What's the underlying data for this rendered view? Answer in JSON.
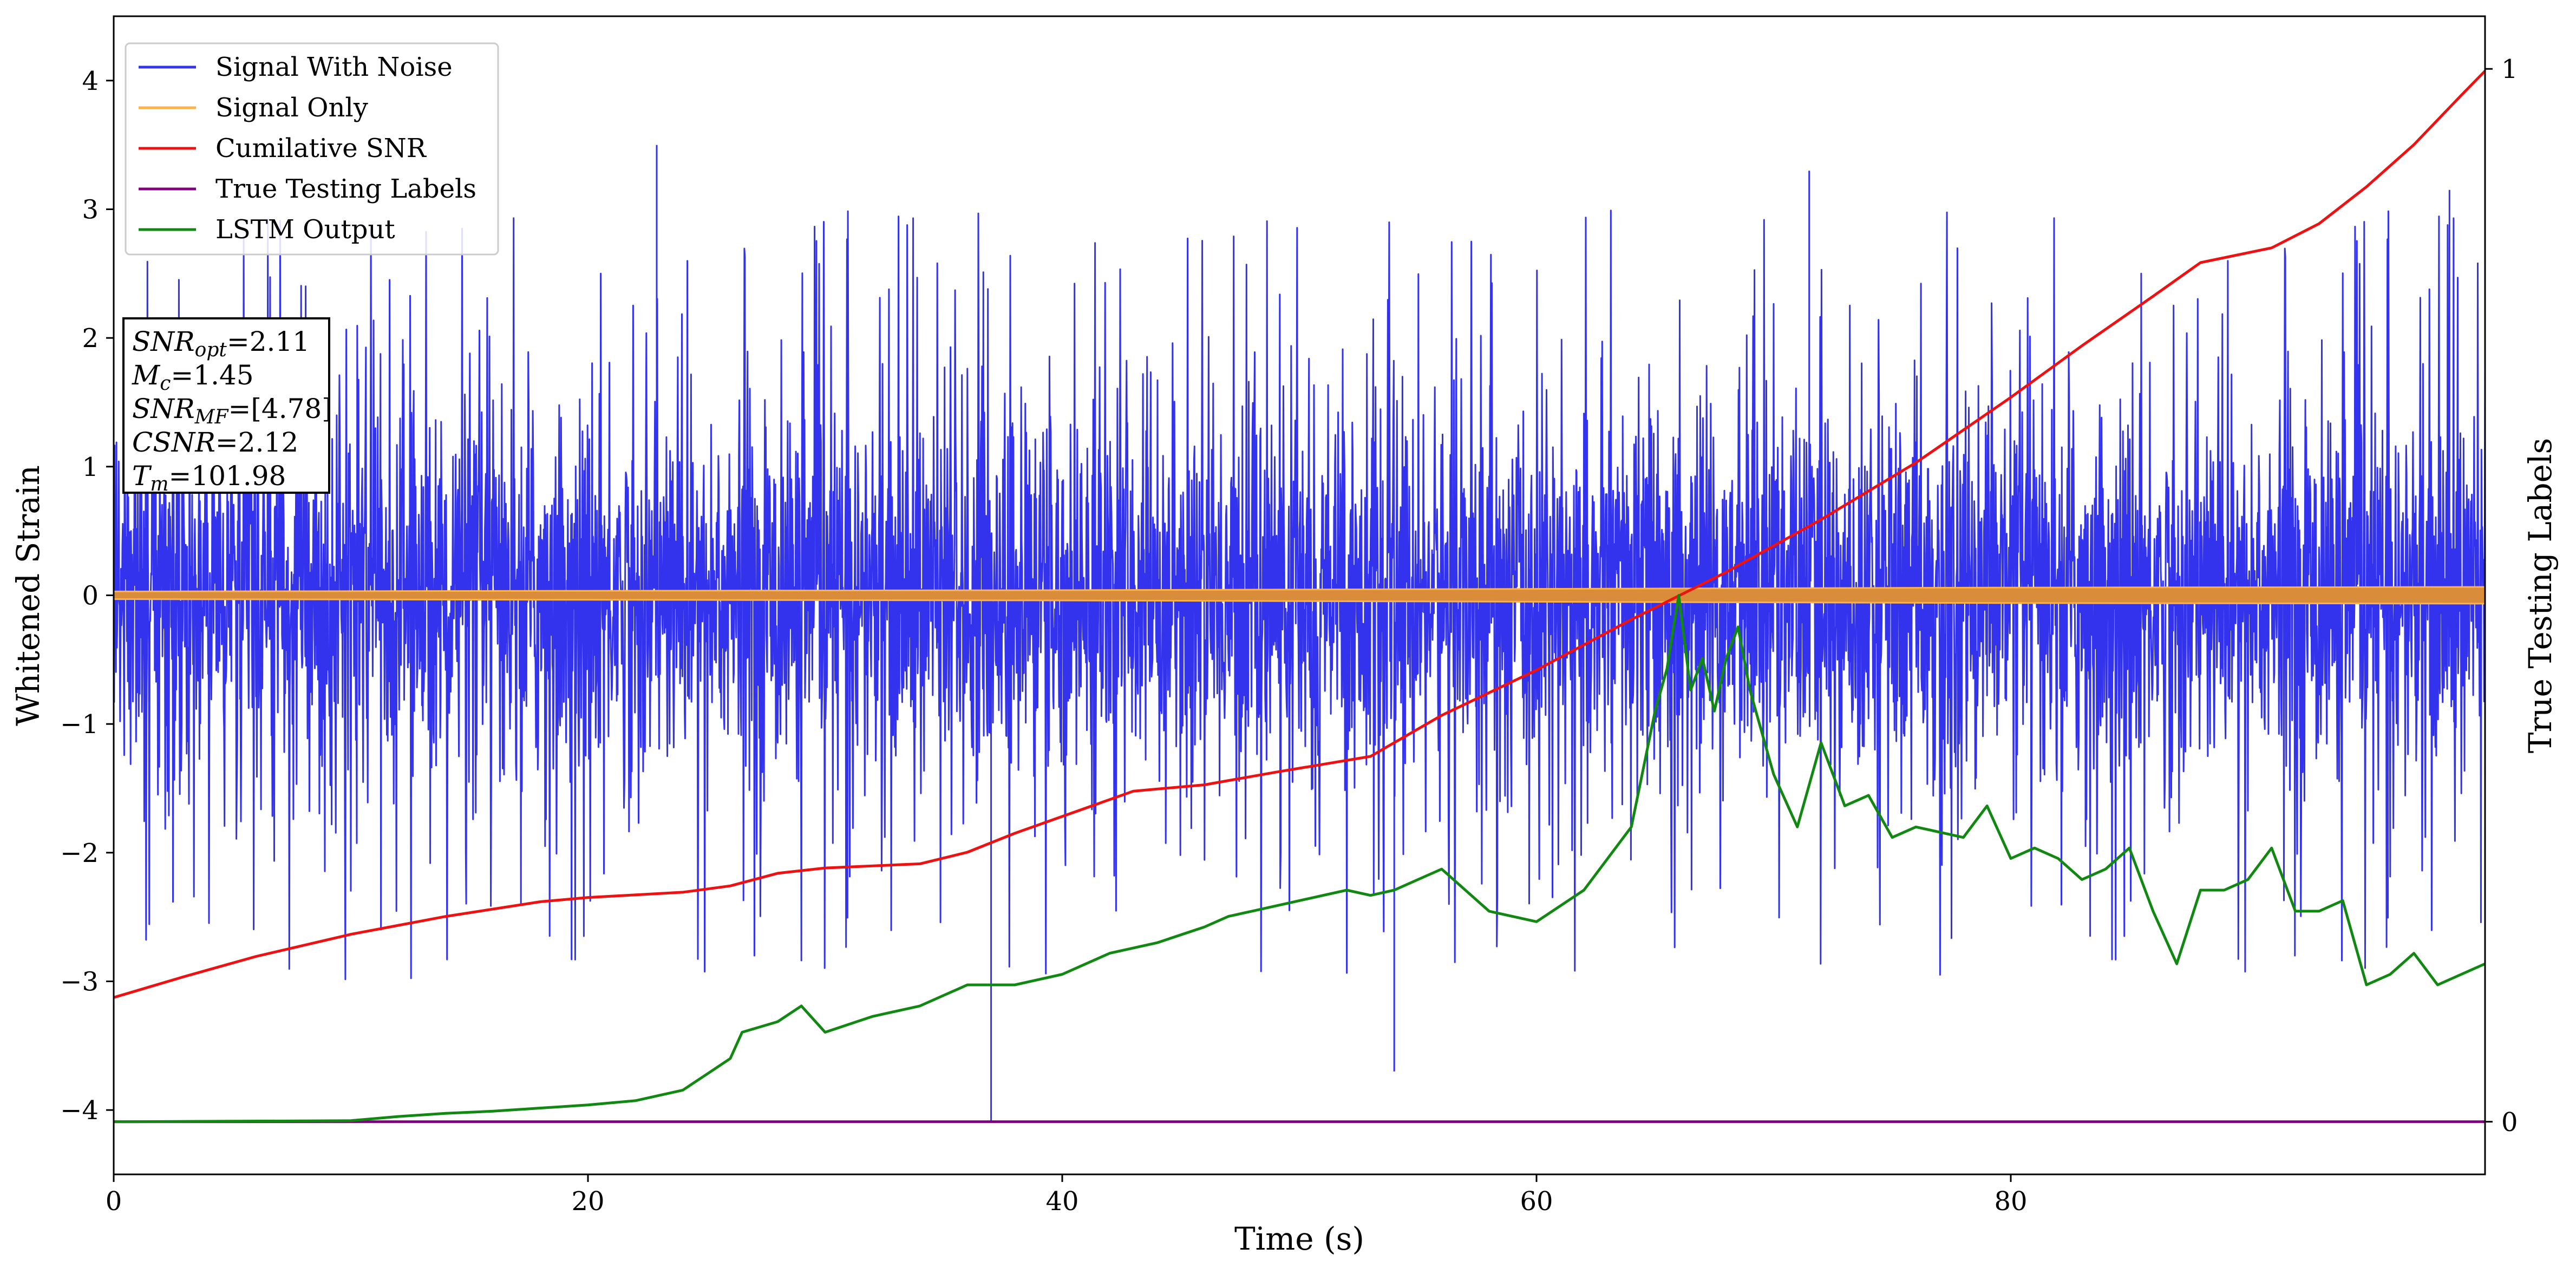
{
  "chart_data": {
    "type": "line",
    "xlabel": "Time (s)",
    "ylabel": "Whitened Strain",
    "y2label": "True Testing Labels",
    "xlim": [
      0,
      100
    ],
    "ylim": [
      -4.5,
      4.5
    ],
    "y2lim": [
      -0.05,
      1.05
    ],
    "xticks": [
      0,
      20,
      40,
      60,
      80
    ],
    "yticks": [
      -4,
      -3,
      -2,
      -1,
      0,
      1,
      2,
      3,
      4
    ],
    "y2ticks": [
      0,
      1
    ],
    "tick_labels": {
      "x": [
        "0",
        "20",
        "40",
        "60",
        "80"
      ],
      "y": [
        "−4",
        "−3",
        "−2",
        "−1",
        "0",
        "1",
        "2",
        "3",
        "4"
      ],
      "y2": [
        "0",
        "1"
      ]
    },
    "grid": false,
    "legend_position": "top-left",
    "legend": [
      {
        "label": "Signal With Noise",
        "color": "#3333ee"
      },
      {
        "label": "Signal Only",
        "color": "#ffb347"
      },
      {
        "label": "Cumilative SNR",
        "color": "#ee1111"
      },
      {
        "label": "True Testing Labels",
        "color": "#800080"
      },
      {
        "label": "LSTM Output",
        "color": "#118811"
      }
    ],
    "annotation": {
      "lines": [
        {
          "base": "SNR",
          "sub": "opt",
          "value": "=2.11"
        },
        {
          "base": "M",
          "sub": "c",
          "value": "=1.45"
        },
        {
          "base": "SNR",
          "sub": "MF",
          "value": "=[4.78]"
        },
        {
          "base": "CSNR",
          "sub": "",
          "value": "=2.12"
        },
        {
          "base": "T",
          "sub": "m",
          "value": "=101.98"
        }
      ]
    },
    "series": [
      {
        "name": "Signal With Noise",
        "axis": "left",
        "color": "#3333ee",
        "render": "noise",
        "noise": {
          "core": 1.0,
          "max_abs_x": [
            [
              0,
              2.5
            ],
            [
              22.9,
              3.5
            ],
            [
              37,
              -4.1
            ],
            [
              54,
              -3.7
            ],
            [
              71.5,
              3.3
            ],
            [
              98.5,
              3.15
            ]
          ]
        }
      },
      {
        "name": "Signal Only",
        "axis": "left",
        "color": "#ffb347",
        "render": "band",
        "x": [
          0,
          20,
          40,
          60,
          80,
          100
        ],
        "amplitude": [
          0.03,
          0.035,
          0.04,
          0.05,
          0.06,
          0.065
        ]
      },
      {
        "name": "Cumilative SNR",
        "axis": "right",
        "color": "#ee1111",
        "x": [
          0,
          3,
          6,
          10,
          14,
          18,
          20,
          24,
          26,
          28,
          30,
          34,
          36,
          38,
          40,
          43,
          46,
          49,
          53,
          56,
          60,
          64,
          68,
          72,
          76,
          80,
          83,
          86,
          88,
          91,
          93,
          95,
          97,
          99,
          100
        ],
        "y": [
          0.118,
          0.138,
          0.157,
          0.178,
          0.195,
          0.209,
          0.213,
          0.218,
          0.224,
          0.236,
          0.241,
          0.245,
          0.256,
          0.274,
          0.29,
          0.314,
          0.32,
          0.332,
          0.347,
          0.386,
          0.429,
          0.477,
          0.522,
          0.572,
          0.626,
          0.688,
          0.737,
          0.784,
          0.816,
          0.83,
          0.853,
          0.888,
          0.928,
          0.975,
          0.998
        ]
      },
      {
        "name": "True Testing Labels",
        "axis": "right",
        "color": "#800080",
        "x": [
          0,
          100
        ],
        "y": [
          0,
          0
        ]
      },
      {
        "name": "LSTM Output",
        "axis": "right",
        "color": "#118811",
        "x": [
          0,
          10,
          12,
          14,
          16,
          18,
          20,
          22,
          24,
          25,
          26,
          26.5,
          28,
          29,
          30,
          32,
          34,
          35,
          36,
          38,
          40,
          42,
          44,
          46,
          47,
          48,
          50,
          52,
          53,
          54,
          55,
          56,
          57,
          58,
          60,
          62,
          63,
          64,
          65,
          65.5,
          66,
          66.5,
          67,
          67.5,
          68,
          68.5,
          69,
          70,
          71,
          72,
          73,
          74,
          75,
          76,
          78,
          79,
          80,
          81,
          82,
          83,
          84,
          85,
          86,
          87,
          88,
          89,
          90,
          91,
          92,
          93,
          94,
          95,
          96,
          97,
          98,
          99,
          100
        ],
        "y": [
          0,
          0.001,
          0.005,
          0.008,
          0.01,
          0.013,
          0.016,
          0.02,
          0.03,
          0.045,
          0.06,
          0.085,
          0.095,
          0.11,
          0.085,
          0.1,
          0.11,
          0.12,
          0.13,
          0.13,
          0.14,
          0.16,
          0.17,
          0.185,
          0.195,
          0.2,
          0.21,
          0.22,
          0.215,
          0.22,
          0.23,
          0.24,
          0.22,
          0.2,
          0.19,
          0.22,
          0.25,
          0.28,
          0.39,
          0.43,
          0.5,
          0.41,
          0.44,
          0.39,
          0.44,
          0.47,
          0.41,
          0.33,
          0.28,
          0.36,
          0.3,
          0.31,
          0.27,
          0.28,
          0.27,
          0.3,
          0.25,
          0.26,
          0.25,
          0.23,
          0.24,
          0.26,
          0.2,
          0.15,
          0.22,
          0.22,
          0.23,
          0.26,
          0.2,
          0.2,
          0.21,
          0.13,
          0.14,
          0.16,
          0.13,
          0.14,
          0.15
        ]
      }
    ]
  }
}
